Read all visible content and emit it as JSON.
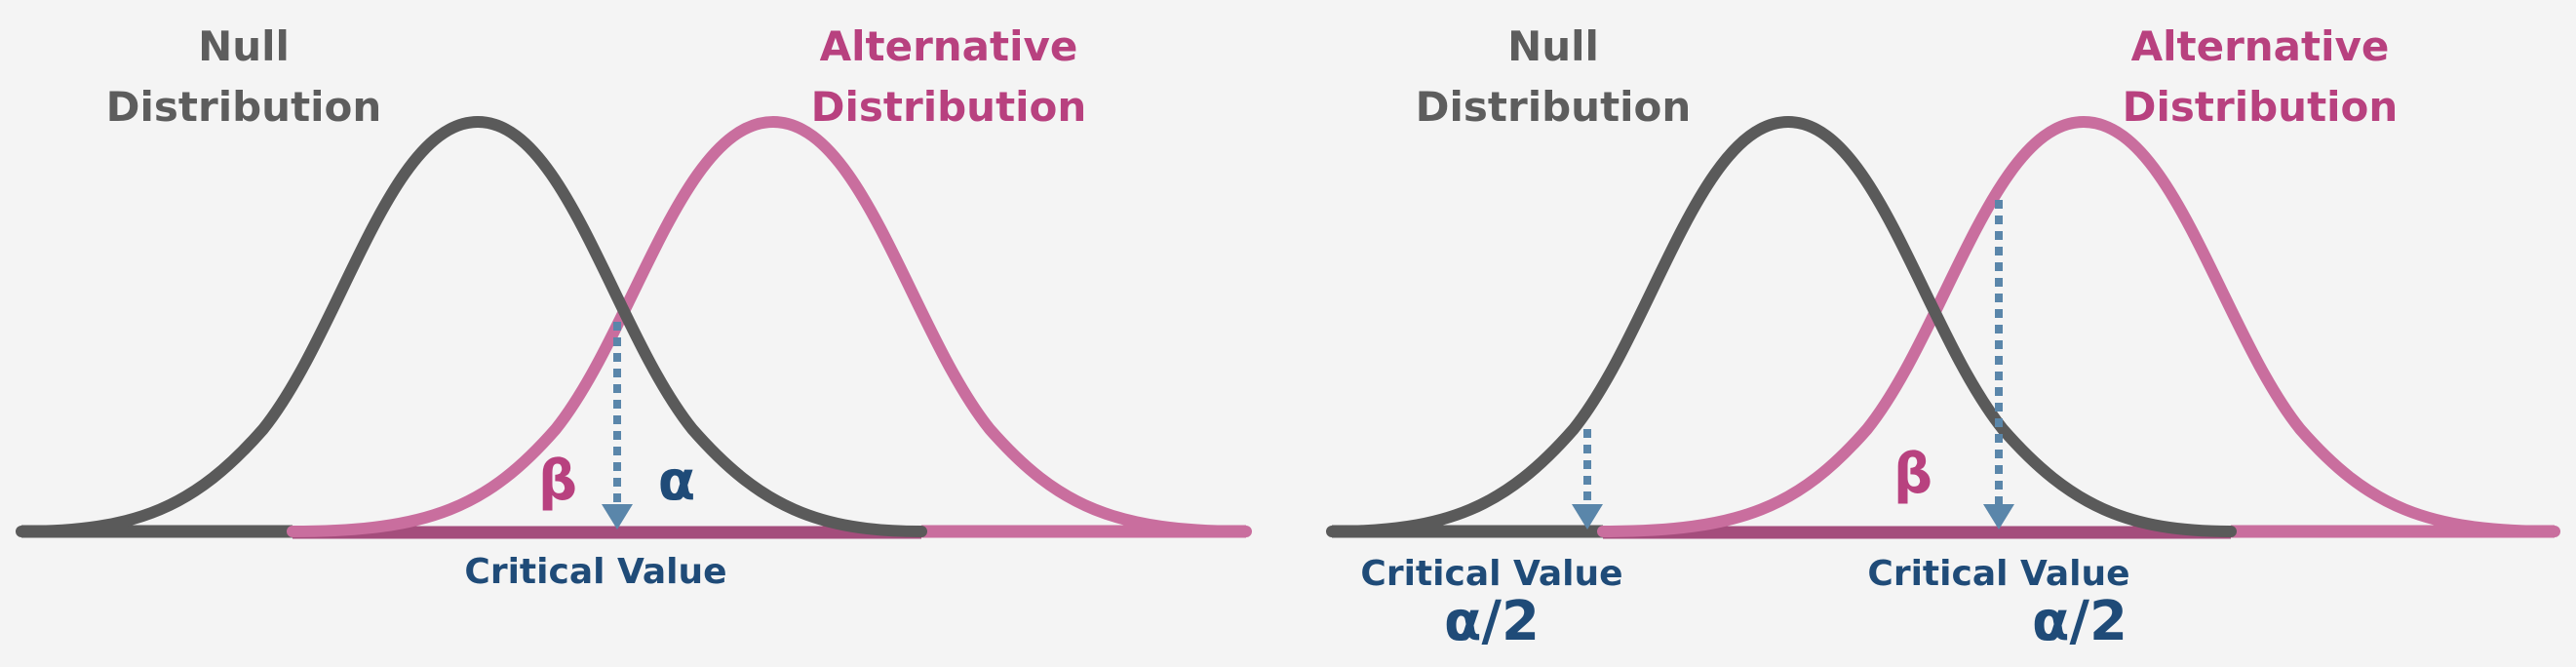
{
  "colors": {
    "background": "#f4f4f4",
    "null_curve": "#5a5a5a",
    "alt_curve": "#c96e9e",
    "overlap_baseline": "#a44d7c",
    "arrow": "#5a86aa",
    "null_text": "#5d5d5d",
    "alt_text": "#b8417f",
    "blue_text": "#1f4b78",
    "beta_text": "#b8417f"
  },
  "panels": [
    {
      "id": "one-tailed",
      "null_label": [
        "Null",
        "Distribution"
      ],
      "alt_label": [
        "Alternative",
        "Distribution"
      ],
      "beta": "β",
      "alpha": "α",
      "critical_label": "Critical Value"
    },
    {
      "id": "two-tailed",
      "null_label": [
        "Null",
        "Distribution"
      ],
      "alt_label": [
        "Alternative",
        "Distribution"
      ],
      "beta": "β",
      "left_critical_label": "Critical Value",
      "left_alpha": "α/2",
      "right_critical_label": "Critical Value",
      "right_alpha": "α/2"
    }
  ]
}
